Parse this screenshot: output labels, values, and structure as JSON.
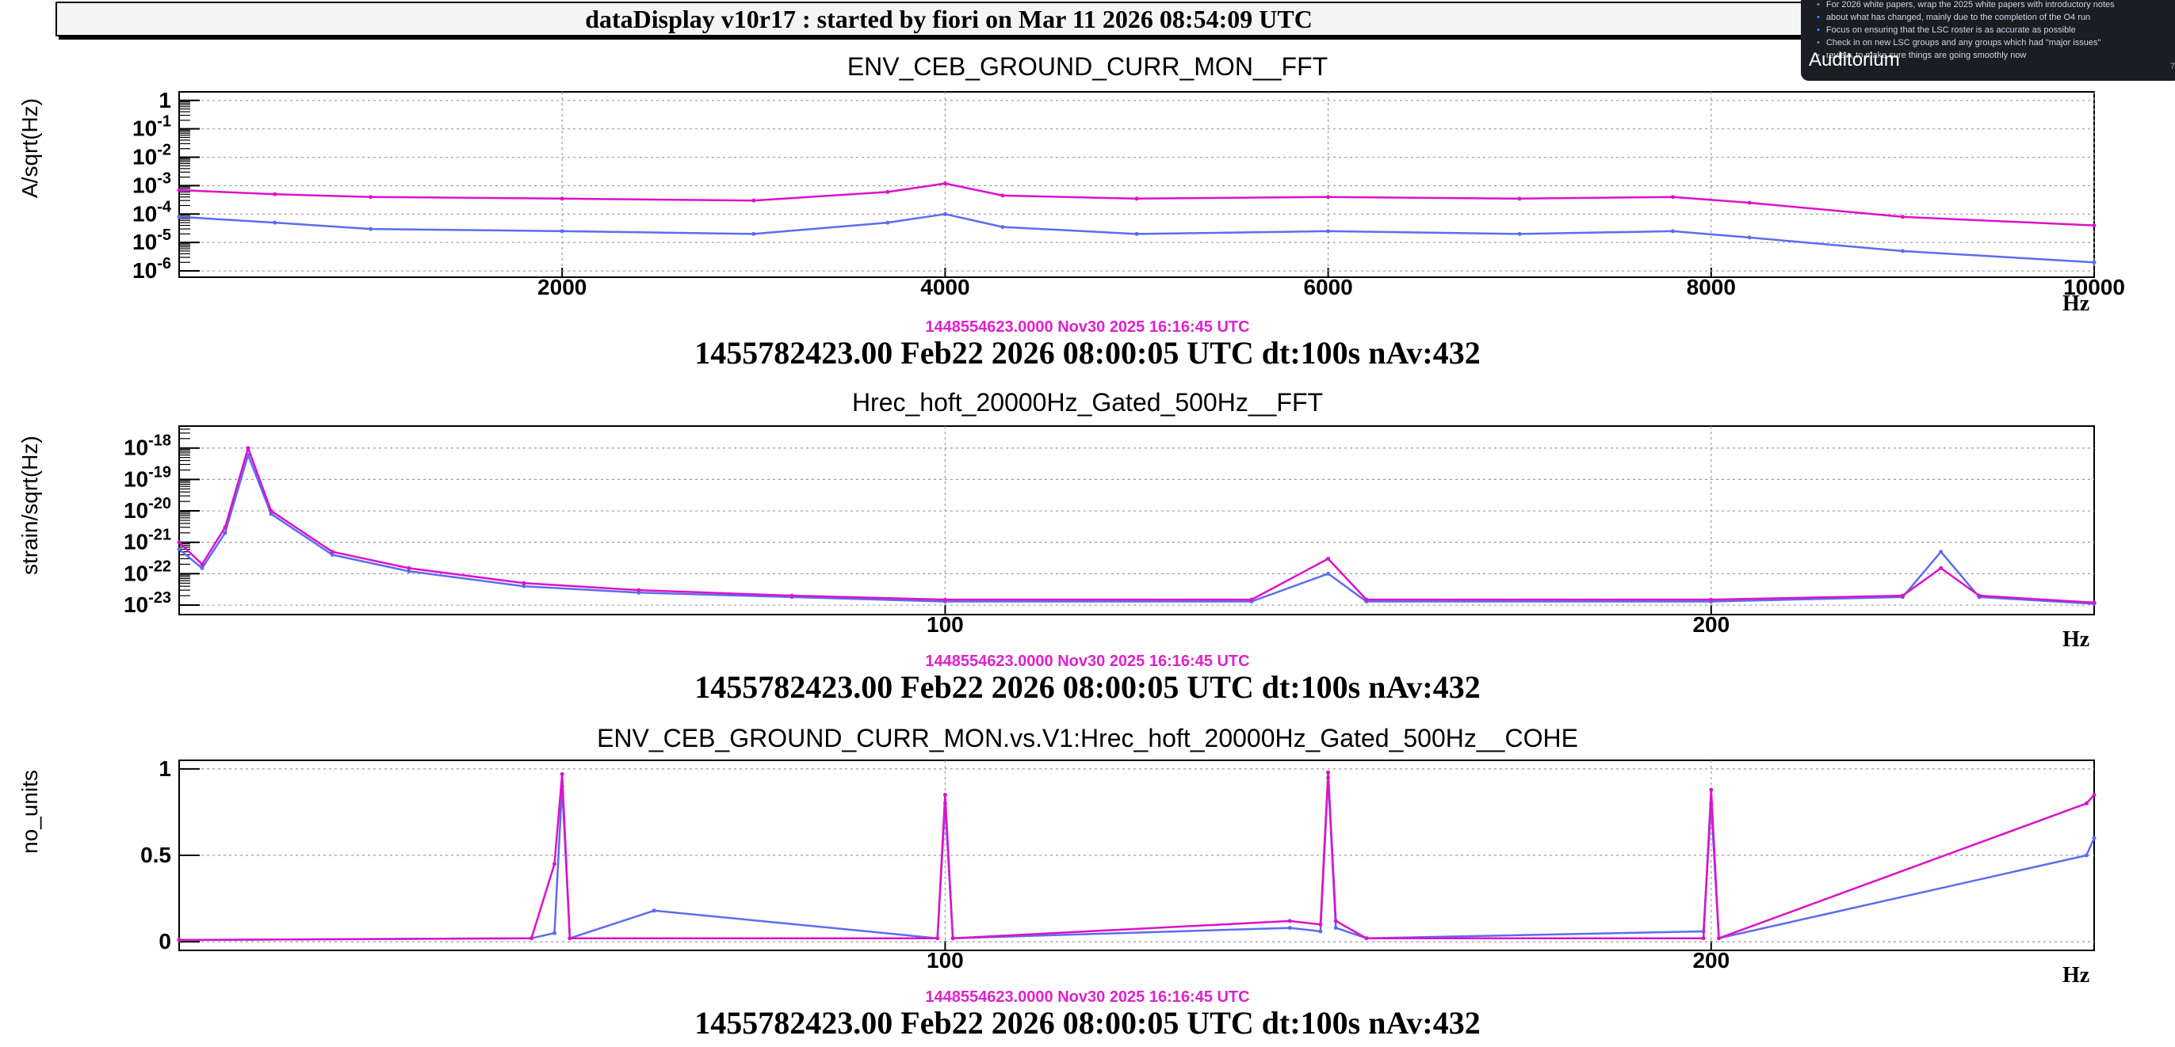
{
  "window_title": "dataDisplay v10r17 : started by fiori on Mar 11 2026 08:54:09 UTC",
  "overlay": {
    "lines": [
      "For 2026 white papers, wrap the 2025 white papers with introductory notes",
      "about what has changed, mainly due to the completion of the O4 run",
      "Focus on ensuring that the LSC roster is as accurate as possible",
      "Check in on new LSC groups and any groups which had \"major issues\"",
      "review, to make sure things are going smoothly now"
    ],
    "room": "Auditorium",
    "page_number": "7"
  },
  "panels": [
    {
      "title": "ENV_CEB_GROUND_CURR_MON__FFT",
      "ylabel": "A/sqrt(Hz)",
      "xunit": "Hz",
      "ref_stamp": "1448554623.0000 Nov30 2025 16:16:45 UTC",
      "stamp": "1455782423.00 Feb22 2026 08:00:05 UTC dt:100s nAv:432"
    },
    {
      "title": "Hrec_hoft_20000Hz_Gated_500Hz__FFT",
      "ylabel": "strain/sqrt(Hz)",
      "xunit": "Hz",
      "ref_stamp": "1448554623.0000 Nov30 2025 16:16:45 UTC",
      "stamp": "1455782423.00 Feb22 2026 08:00:05 UTC dt:100s nAv:432"
    },
    {
      "title": "ENV_CEB_GROUND_CURR_MON.vs.V1:Hrec_hoft_20000Hz_Gated_500Hz__COHE",
      "ylabel": "no_units",
      "xunit": "Hz",
      "ref_stamp": "1448554623.0000 Nov30 2025 16:16:45 UTC",
      "stamp": "1455782423.00 Feb22 2026 08:00:05 UTC dt:100s nAv:432"
    }
  ],
  "colors": {
    "current": "#5c6cf0",
    "reference": "#dd11cc",
    "stamp_reference": "#e020d0"
  },
  "chart_data": [
    {
      "type": "line",
      "title": "ENV_CEB_GROUND_CURR_MON__FFT",
      "xlabel": "Hz",
      "ylabel": "A/sqrt(Hz)",
      "yscale": "log",
      "xlim": [
        0,
        10000
      ],
      "ylim": [
        6e-07,
        2
      ],
      "grid": true,
      "xticks": [
        "2000",
        "4000",
        "6000",
        "8000",
        "10000"
      ],
      "yticks": [
        "10^-6",
        "10^-5",
        "10^-4",
        "10^-3",
        "10^-2",
        "10^-1",
        "1"
      ],
      "series": [
        {
          "color": "#dd11cc",
          "x": [
            0,
            500,
            1000,
            2000,
            3000,
            3700,
            4000,
            4300,
            5000,
            6000,
            7000,
            7800,
            8200,
            9000,
            10000
          ],
          "y": [
            0.0007,
            0.0005,
            0.0004,
            0.00035,
            0.0003,
            0.0006,
            0.0012,
            0.00045,
            0.00035,
            0.0004,
            0.00035,
            0.0004,
            0.00025,
            8e-05,
            4e-05
          ]
        },
        {
          "color": "#5c6cf0",
          "x": [
            0,
            500,
            1000,
            2000,
            3000,
            3700,
            4000,
            4300,
            5000,
            6000,
            7000,
            7800,
            8200,
            9000,
            10000
          ],
          "y": [
            8e-05,
            5e-05,
            3e-05,
            2.5e-05,
            2e-05,
            5e-05,
            0.0001,
            3.5e-05,
            2e-05,
            2.5e-05,
            2e-05,
            2.5e-05,
            1.5e-05,
            5e-06,
            2e-06
          ]
        }
      ]
    },
    {
      "type": "line",
      "title": "Hrec_hoft_20000Hz_Gated_500Hz__FFT",
      "xlabel": "Hz",
      "ylabel": "strain/sqrt(Hz)",
      "yscale": "log",
      "xlim": [
        0,
        250
      ],
      "ylim": [
        5e-24,
        5e-18
      ],
      "grid": true,
      "xticks": [
        "100",
        "200"
      ],
      "yticks": [
        "10^-23",
        "10^-22",
        "10^-21",
        "10^-20",
        "10^-19",
        "10^-18"
      ],
      "series": [
        {
          "color": "#dd11cc",
          "x": [
            0,
            3,
            6,
            9,
            12,
            20,
            30,
            45,
            60,
            80,
            100,
            140,
            150,
            155,
            200,
            225,
            230,
            235,
            250
          ],
          "y": [
            1e-21,
            2e-22,
            3e-21,
            1e-18,
            1e-20,
            5e-22,
            1.5e-22,
            5e-23,
            3e-23,
            2e-23,
            1.5e-23,
            1.5e-23,
            3e-22,
            1.5e-23,
            1.5e-23,
            2e-23,
            1.5e-22,
            2e-23,
            1.2e-23
          ]
        },
        {
          "color": "#5c6cf0",
          "x": [
            0,
            3,
            6,
            9,
            12,
            20,
            30,
            45,
            60,
            80,
            100,
            140,
            150,
            155,
            200,
            225,
            230,
            235,
            250
          ],
          "y": [
            6e-22,
            1.5e-22,
            2e-21,
            6e-19,
            8e-21,
            4e-22,
            1.2e-22,
            4e-23,
            2.5e-23,
            1.8e-23,
            1.3e-23,
            1.3e-23,
            1e-22,
            1.3e-23,
            1.3e-23,
            1.8e-23,
            5e-22,
            1.8e-23,
            1.1e-23
          ]
        }
      ]
    },
    {
      "type": "line",
      "title": "ENV_CEB_GROUND_CURR_MON.vs.V1:Hrec_hoft_20000Hz_Gated_500Hz__COHE",
      "xlabel": "Hz",
      "ylabel": "no_units",
      "xlim": [
        0,
        250
      ],
      "ylim": [
        -0.05,
        1.05
      ],
      "grid": true,
      "xticks": [
        "100",
        "200"
      ],
      "yticks": [
        "0",
        "0.5",
        "1"
      ],
      "series": [
        {
          "color": "#dd11cc",
          "x": [
            0,
            46,
            49,
            50,
            51,
            99,
            100,
            101,
            145,
            149,
            150,
            151,
            155,
            199,
            200,
            201,
            249,
            250
          ],
          "y": [
            0.01,
            0.02,
            0.45,
            0.97,
            0.02,
            0.02,
            0.85,
            0.02,
            0.12,
            0.1,
            0.98,
            0.12,
            0.02,
            0.02,
            0.88,
            0.02,
            0.8,
            0.85
          ]
        },
        {
          "color": "#5c6cf0",
          "x": [
            0,
            46,
            49,
            50,
            51,
            62,
            99,
            100,
            101,
            145,
            149,
            150,
            151,
            155,
            199,
            200,
            201,
            249,
            250
          ],
          "y": [
            0.01,
            0.02,
            0.05,
            0.9,
            0.02,
            0.18,
            0.02,
            0.8,
            0.02,
            0.08,
            0.06,
            0.95,
            0.08,
            0.02,
            0.06,
            0.8,
            0.02,
            0.5,
            0.6
          ]
        }
      ]
    }
  ]
}
